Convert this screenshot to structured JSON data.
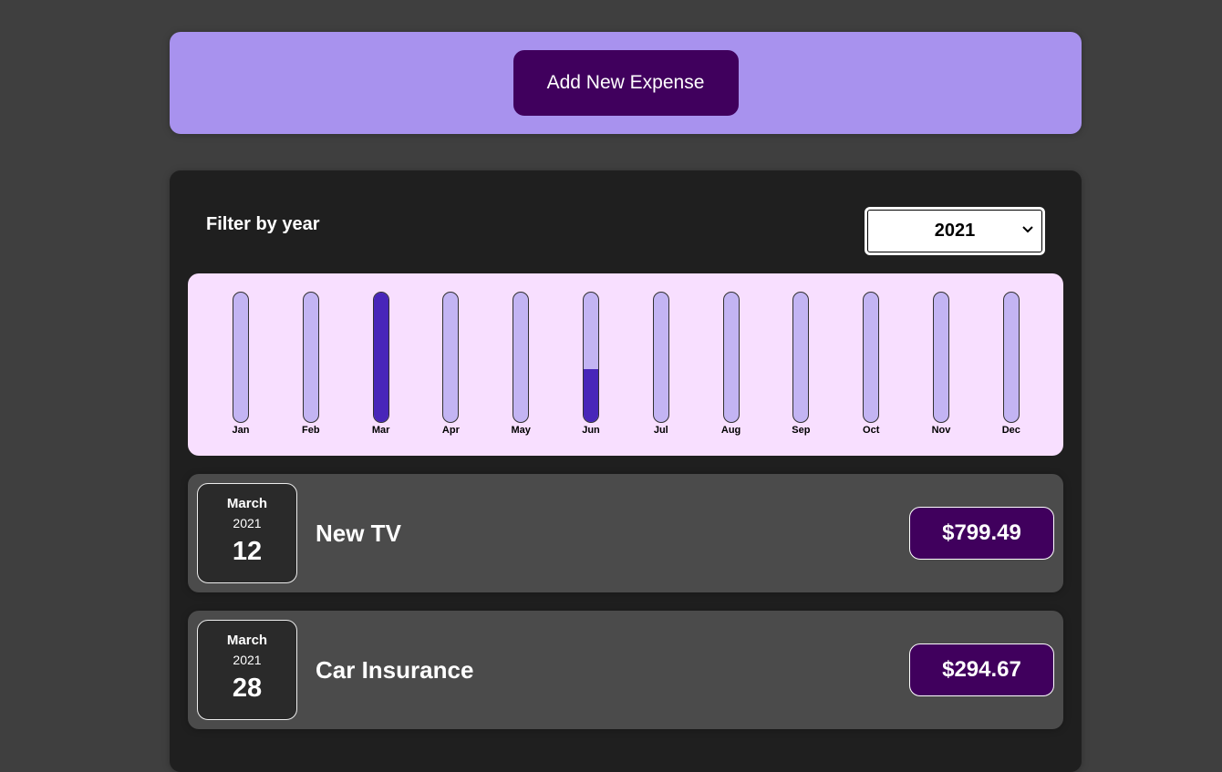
{
  "header": {
    "add_button_label": "Add New Expense"
  },
  "filter": {
    "label": "Filter by year",
    "selected_year": "2021",
    "chevron_icon": "chevron-down-icon"
  },
  "chart_data": {
    "type": "bar",
    "categories": [
      "Jan",
      "Feb",
      "Mar",
      "Apr",
      "May",
      "Jun",
      "Jul",
      "Aug",
      "Sep",
      "Oct",
      "Nov",
      "Dec"
    ],
    "values": [
      0,
      0,
      1.0,
      0,
      0,
      0.41,
      0,
      0,
      0,
      0,
      0,
      0
    ],
    "value_unit": "fraction of max",
    "ylim": [
      0,
      1
    ],
    "title": "",
    "xlabel": "",
    "ylabel": "",
    "colors": {
      "track": "#c3b4f3",
      "fill": "#4826b9",
      "background": "#f8dfff"
    }
  },
  "expenses": [
    {
      "month": "March",
      "year": "2021",
      "day": "12",
      "title": "New TV",
      "amount": "$799.49"
    },
    {
      "month": "March",
      "year": "2021",
      "day": "28",
      "title": "Car Insurance",
      "amount": "$294.67"
    }
  ],
  "colors": {
    "page_background": "#3f3f3f",
    "header_background": "#a892ee",
    "button_background": "#40005d",
    "panel_background": "#1f1f1f",
    "item_background": "#4b4b4b"
  }
}
